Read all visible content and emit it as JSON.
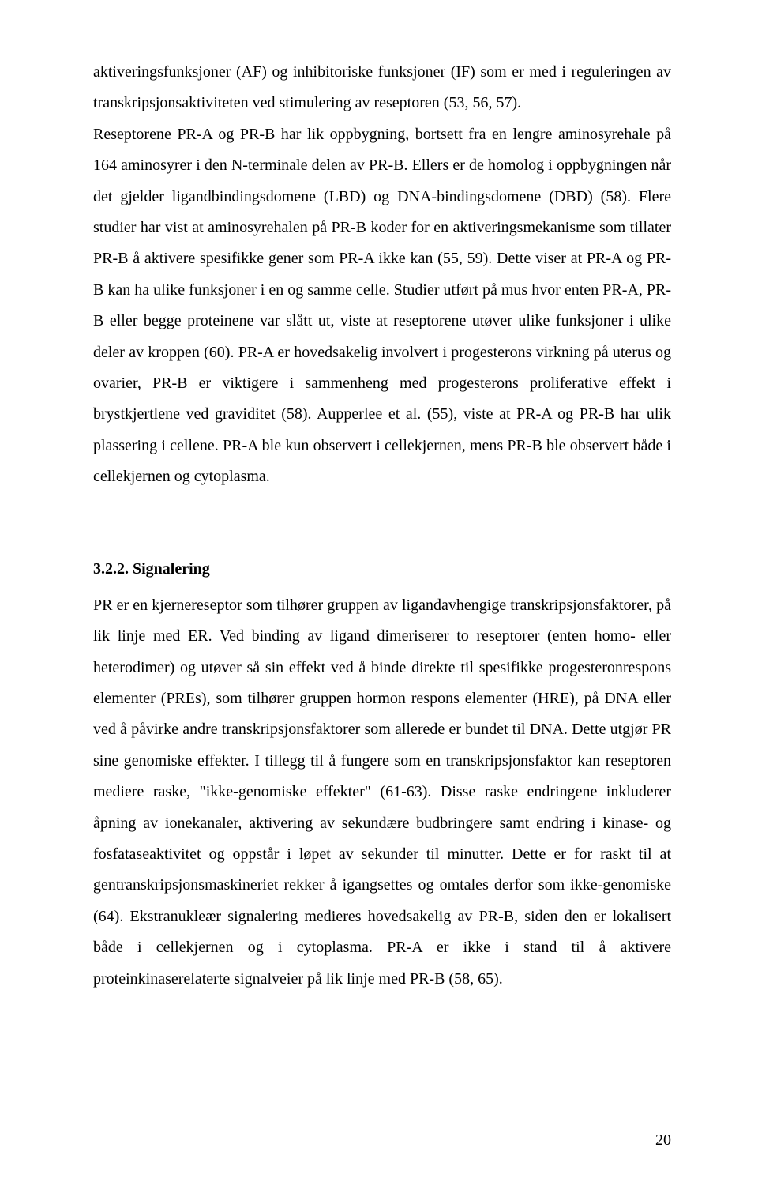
{
  "paragraph1": "aktiveringsfunksjoner (AF) og inhibitoriske funksjoner (IF) som er med i reguleringen av transkripsjonsaktiviteten ved stimulering av reseptoren (53, 56, 57).",
  "paragraph2": "Reseptorene PR-A og PR-B har lik oppbygning, bortsett fra en lengre aminosyrehale på 164 aminosyrer i den N-terminale delen av PR-B. Ellers er de homolog i oppbygningen når det gjelder ligandbindingsdomene (LBD) og DNA-bindingsdomene (DBD) (58). Flere studier har vist at aminosyrehalen på PR-B koder for en aktiveringsmekanisme som tillater PR-B å aktivere spesifikke gener som PR-A ikke kan (55, 59). Dette viser at PR-A og PR-B kan ha ulike funksjoner i en og samme celle. Studier utført på mus hvor enten PR-A, PR-B eller begge proteinene var slått ut, viste at reseptorene utøver ulike funksjoner i ulike deler av kroppen (60). PR-A er hovedsakelig involvert i progesterons virkning på uterus og ovarier, PR-B er viktigere i sammenheng med progesterons proliferative effekt i brystkjertlene ved graviditet (58). Aupperlee et al. (55), viste at PR-A og PR-B har ulik plassering i cellene. PR-A ble kun observert i cellekjernen, mens PR-B ble observert både i cellekjernen og cytoplasma.",
  "heading": "3.2.2. Signalering",
  "paragraph3": "PR er en kjernereseptor som tilhører gruppen av ligandavhengige transkripsjonsfaktorer, på lik linje med ER. Ved binding av ligand dimeriserer to reseptorer (enten homo- eller heterodimer) og utøver så sin effekt ved å binde direkte til spesifikke progesteronrespons elementer (PREs), som tilhører gruppen hormon respons elementer (HRE), på DNA eller ved å påvirke andre transkripsjonsfaktorer som allerede er bundet til DNA. Dette utgjør PR sine genomiske effekter. I tillegg til å fungere som en transkripsjonsfaktor kan reseptoren mediere raske, \"ikke-genomiske effekter\" (61-63). Disse raske endringene inkluderer åpning av ionekanaler, aktivering av sekundære budbringere samt endring i kinase- og fosfataseaktivitet og oppstår i løpet av sekunder til minutter. Dette er for raskt til at gentranskripsjonsmaskineriet rekker å igangsettes og omtales derfor som ikke-genomiske (64). Ekstranukleær signalering medieres hovedsakelig av PR-B, siden den er lokalisert både i cellekjernen og i cytoplasma. PR-A er ikke i stand til å aktivere proteinkinaserelaterte signalveier på lik linje med PR-B (58, 65).",
  "pageNumber": "20"
}
